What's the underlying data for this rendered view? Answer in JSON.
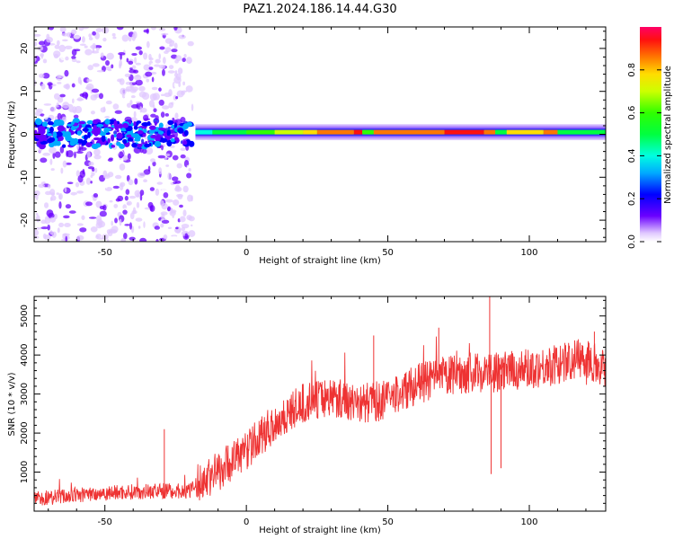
{
  "title": "PAZ1.2024.186.14.44.G30",
  "chart_data": [
    {
      "type": "heatmap",
      "xlabel": "Height of straight line (km)",
      "ylabel": "Frequency (Hz)",
      "xlim": [
        -75,
        127
      ],
      "ylim": [
        -25,
        25
      ],
      "xticks": [
        -50,
        0,
        50,
        100
      ],
      "yticks": [
        -20,
        -10,
        0,
        10,
        20
      ],
      "colorbar": {
        "label": "Normalized spectral amplitude",
        "range": [
          0,
          1
        ],
        "ticks": [
          0.0,
          0.2,
          0.4,
          0.6,
          0.8
        ],
        "colormap": "gist_rainbow_r"
      },
      "signal_band": {
        "scatter_x_range": [
          -75,
          -19
        ],
        "line_x_range": [
          -18,
          127
        ],
        "line_center_hz": 0.5,
        "profile": [
          {
            "x": -18,
            "amp": 0.45
          },
          {
            "x": -12,
            "amp": 0.55
          },
          {
            "x": 0,
            "amp": 0.6
          },
          {
            "x": 10,
            "amp": 0.7
          },
          {
            "x": 20,
            "amp": 0.8
          },
          {
            "x": 25,
            "amp": 0.9
          },
          {
            "x": 38,
            "amp": 0.95
          },
          {
            "x": 41,
            "amp": 0.6
          },
          {
            "x": 45,
            "amp": 0.9
          },
          {
            "x": 60,
            "amp": 0.92
          },
          {
            "x": 70,
            "amp": 0.95
          },
          {
            "x": 84,
            "amp": 0.9
          },
          {
            "x": 88,
            "amp": 0.5
          },
          {
            "x": 92,
            "amp": 0.85
          },
          {
            "x": 105,
            "amp": 0.9
          },
          {
            "x": 110,
            "amp": 0.5
          },
          {
            "x": 127,
            "amp": 0.45
          }
        ]
      }
    },
    {
      "type": "line",
      "xlabel": "Height of straight line (km)",
      "ylabel": "SNR (10 * v/v)",
      "xlim": [
        -75,
        127
      ],
      "ylim": [
        0,
        5500
      ],
      "xticks": [
        -50,
        0,
        50,
        100
      ],
      "yticks": [
        1000,
        2000,
        3000,
        4000,
        5000
      ],
      "color": "#ee3333",
      "trend": [
        {
          "x": -75,
          "y": 300
        },
        {
          "x": -50,
          "y": 450
        },
        {
          "x": -30,
          "y": 500
        },
        {
          "x": -20,
          "y": 500
        },
        {
          "x": -12,
          "y": 900
        },
        {
          "x": 0,
          "y": 1500
        },
        {
          "x": 10,
          "y": 2200
        },
        {
          "x": 20,
          "y": 2700
        },
        {
          "x": 30,
          "y": 2900
        },
        {
          "x": 40,
          "y": 2700
        },
        {
          "x": 50,
          "y": 2800
        },
        {
          "x": 60,
          "y": 3200
        },
        {
          "x": 70,
          "y": 3400
        },
        {
          "x": 80,
          "y": 3500
        },
        {
          "x": 90,
          "y": 3500
        },
        {
          "x": 100,
          "y": 3600
        },
        {
          "x": 110,
          "y": 3700
        },
        {
          "x": 120,
          "y": 3900
        },
        {
          "x": 127,
          "y": 3600
        }
      ],
      "spikes": [
        {
          "x": -29,
          "y": 2100
        },
        {
          "x": 45,
          "y": 4500
        },
        {
          "x": 68,
          "y": 4700
        },
        {
          "x": 86,
          "y": 5500
        },
        {
          "x": 86.5,
          "y": 950
        },
        {
          "x": 90,
          "y": 1100
        },
        {
          "x": 123,
          "y": 4600
        }
      ]
    }
  ]
}
